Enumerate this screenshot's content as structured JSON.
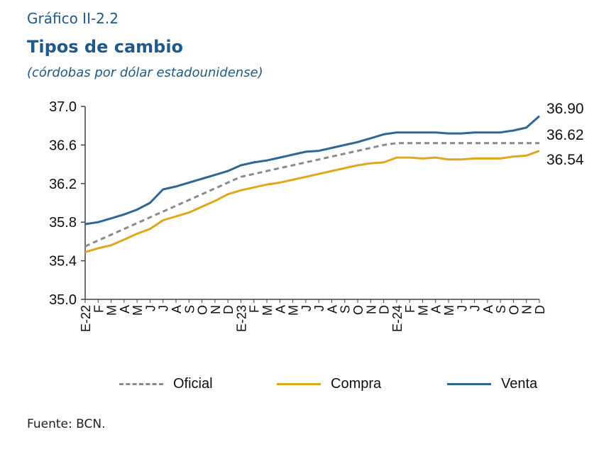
{
  "header": {
    "figure_label": "Gráfico II-2.2",
    "title": "Tipos de cambio",
    "subtitle": "(córdobas por dólar estadounidense)"
  },
  "source": "Fuente: BCN.",
  "colors": {
    "oficial": "#8c8c8c",
    "compra": "#e0a81c",
    "venta": "#2f6795",
    "axis": "#444444"
  },
  "chart_data": {
    "type": "line",
    "ylim": [
      35.0,
      37.0
    ],
    "yticks": [
      "35.0",
      "35.4",
      "35.8",
      "36.2",
      "36.6",
      "37.0"
    ],
    "categories": [
      "E-22",
      "F",
      "M",
      "A",
      "M",
      "J",
      "J",
      "A",
      "S",
      "O",
      "N",
      "D",
      "E-23",
      "F",
      "M",
      "A",
      "M",
      "J",
      "J",
      "A",
      "S",
      "O",
      "N",
      "D",
      "E-24",
      "F",
      "M",
      "A",
      "M",
      "J",
      "J",
      "A",
      "S",
      "O",
      "N",
      "D"
    ],
    "series": [
      {
        "name": "Oficial",
        "style": "dashed",
        "end_label": "36.62",
        "values": [
          35.55,
          35.61,
          35.67,
          35.73,
          35.79,
          35.85,
          35.91,
          35.97,
          36.03,
          36.09,
          36.15,
          36.21,
          36.27,
          36.3,
          36.33,
          36.36,
          36.39,
          36.42,
          36.45,
          36.48,
          36.51,
          36.54,
          36.57,
          36.6,
          36.62,
          36.62,
          36.62,
          36.62,
          36.62,
          36.62,
          36.62,
          36.62,
          36.62,
          36.62,
          36.62,
          36.62
        ]
      },
      {
        "name": "Compra",
        "style": "solid",
        "end_label": "36.54",
        "values": [
          35.49,
          35.53,
          35.56,
          35.62,
          35.68,
          35.73,
          35.82,
          35.86,
          35.9,
          35.96,
          36.02,
          36.09,
          36.13,
          36.16,
          36.19,
          36.21,
          36.24,
          36.27,
          36.3,
          36.33,
          36.36,
          36.39,
          36.41,
          36.42,
          36.47,
          36.47,
          36.46,
          36.47,
          36.45,
          36.45,
          36.46,
          36.46,
          36.46,
          36.48,
          36.49,
          36.54
        ]
      },
      {
        "name": "Venta",
        "style": "solid",
        "end_label": "36.90",
        "values": [
          35.78,
          35.8,
          35.84,
          35.88,
          35.93,
          36.0,
          36.14,
          36.17,
          36.21,
          36.25,
          36.29,
          36.33,
          36.39,
          36.42,
          36.44,
          36.47,
          36.5,
          36.53,
          36.54,
          36.57,
          36.6,
          36.63,
          36.67,
          36.71,
          36.73,
          36.73,
          36.73,
          36.73,
          36.72,
          36.72,
          36.73,
          36.73,
          36.73,
          36.75,
          36.78,
          36.9
        ]
      }
    ]
  }
}
